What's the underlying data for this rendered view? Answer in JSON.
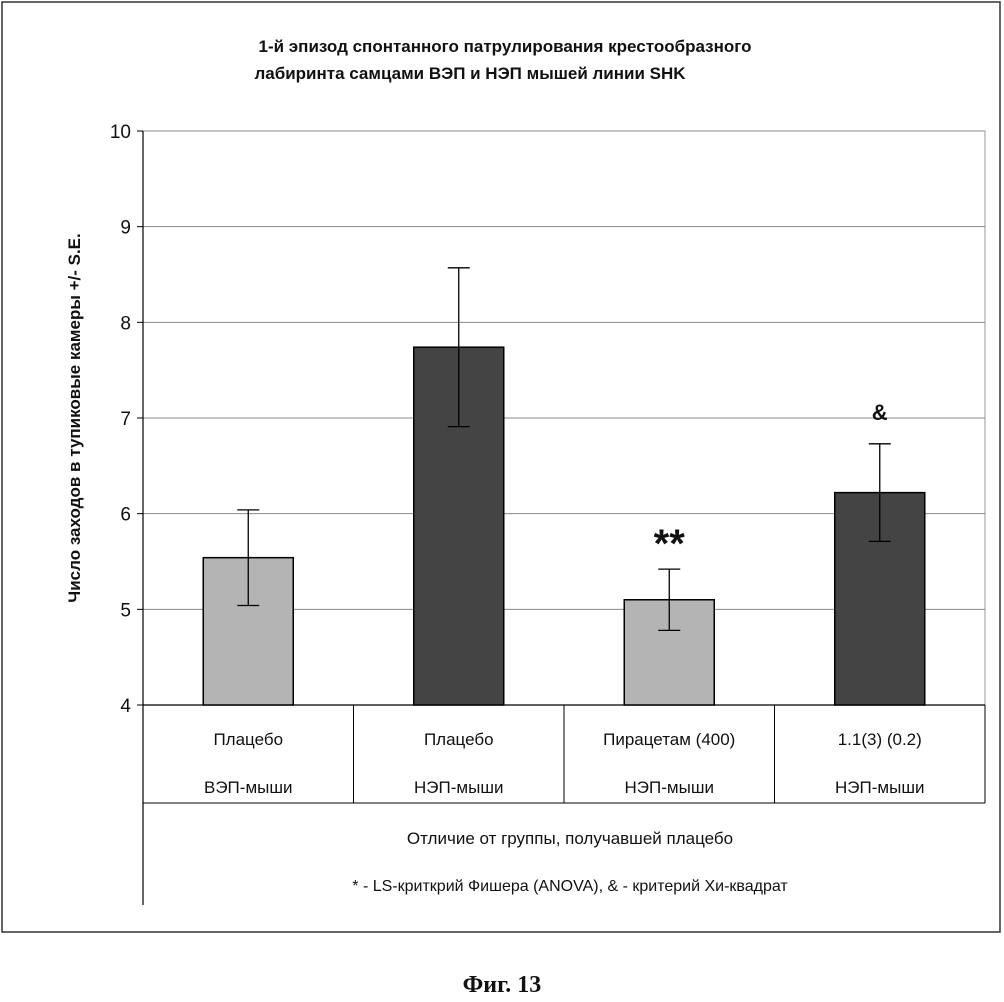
{
  "chart_data": {
    "type": "bar",
    "title": "1-й эпизод спонтанного патрулирования крестообразного лабиринта самцами ВЭП и НЭП мышей линии SHK",
    "title_lines": [
      "1-й эпизод спонтанного патрулирования крестообразного",
      "лабиринта самцами ВЭП и НЭП мышей линии SHK"
    ],
    "ylabel": "Число заходов в тупиковые камеры +/- S.E.",
    "ylim": [
      4,
      10
    ],
    "yticks": [
      "4",
      "5",
      "6",
      "7",
      "8",
      "9",
      "10"
    ],
    "grid": true,
    "categories": [
      {
        "treatment": "Плацебо",
        "group": "ВЭП-мыши"
      },
      {
        "treatment": "Плацебо",
        "group": "НЭП-мыши"
      },
      {
        "treatment": "Пирацетам (400)",
        "group": "НЭП-мыши"
      },
      {
        "treatment": "1.1(3) (0.2)",
        "group": "НЭП-мыши"
      }
    ],
    "values": [
      5.54,
      7.74,
      5.1,
      6.22
    ],
    "errors": [
      0.5,
      0.83,
      0.32,
      0.51
    ],
    "annotations": [
      "",
      "",
      "**",
      "&"
    ],
    "bar_colors": [
      "#b4b4b4",
      "#444444",
      "#b4b4b4",
      "#444444"
    ],
    "note_line1": "Отличие от группы, получавшей плацебо",
    "note_line2": "* - LS-криткрий Фишера (ANOVA), & - критерий Хи-квадрат"
  },
  "caption": "Фиг. 13"
}
